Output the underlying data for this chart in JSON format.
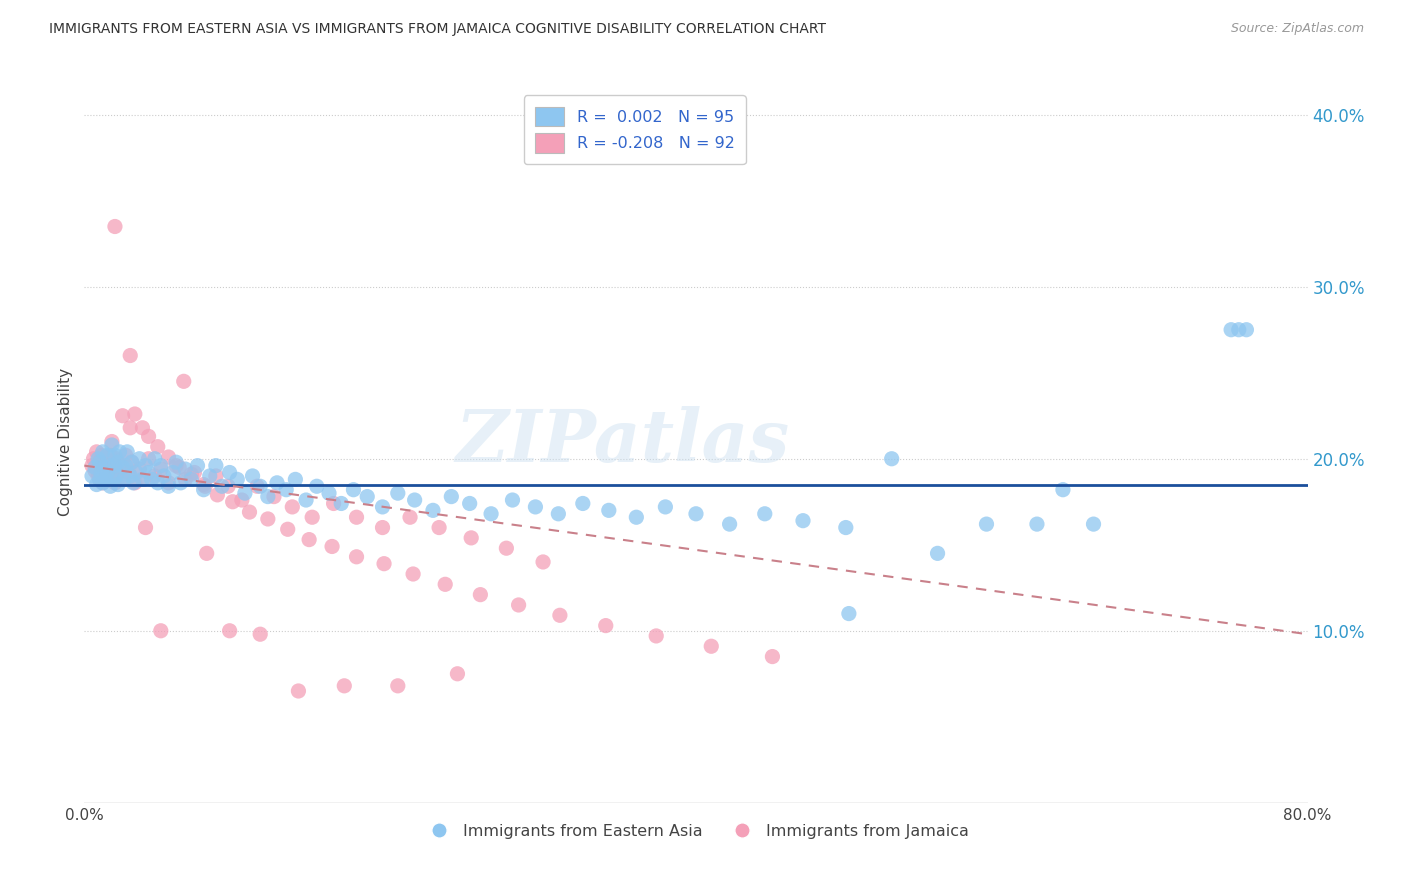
{
  "title": "IMMIGRANTS FROM EASTERN ASIA VS IMMIGRANTS FROM JAMAICA COGNITIVE DISABILITY CORRELATION CHART",
  "source": "Source: ZipAtlas.com",
  "ylabel": "Cognitive Disability",
  "xlim": [
    0.0,
    0.8
  ],
  "ylim": [
    0.0,
    0.42
  ],
  "yticks": [
    0.1,
    0.2,
    0.3,
    0.4
  ],
  "ytick_labels": [
    "10.0%",
    "20.0%",
    "30.0%",
    "40.0%"
  ],
  "color_blue": "#8EC6F0",
  "color_pink": "#F4A0B8",
  "trend_blue_color": "#1B4F9C",
  "trend_pink_color": "#C9808A",
  "watermark": "ZIPatlas",
  "blue_trend_y0": 0.185,
  "blue_trend_y1": 0.185,
  "pink_trend_y0": 0.196,
  "pink_trend_y1": 0.098,
  "blue_x": [
    0.005,
    0.007,
    0.008,
    0.009,
    0.01,
    0.01,
    0.011,
    0.012,
    0.012,
    0.013,
    0.014,
    0.015,
    0.015,
    0.016,
    0.017,
    0.018,
    0.019,
    0.02,
    0.02,
    0.021,
    0.022,
    0.022,
    0.023,
    0.025,
    0.026,
    0.027,
    0.028,
    0.03,
    0.031,
    0.032,
    0.034,
    0.036,
    0.038,
    0.04,
    0.042,
    0.044,
    0.046,
    0.048,
    0.05,
    0.052,
    0.055,
    0.058,
    0.06,
    0.063,
    0.066,
    0.07,
    0.074,
    0.078,
    0.082,
    0.086,
    0.09,
    0.095,
    0.1,
    0.105,
    0.11,
    0.115,
    0.12,
    0.126,
    0.132,
    0.138,
    0.145,
    0.152,
    0.16,
    0.168,
    0.176,
    0.185,
    0.195,
    0.205,
    0.216,
    0.228,
    0.24,
    0.252,
    0.266,
    0.28,
    0.295,
    0.31,
    0.326,
    0.343,
    0.361,
    0.38,
    0.4,
    0.422,
    0.445,
    0.47,
    0.498,
    0.5,
    0.528,
    0.558,
    0.59,
    0.623,
    0.64,
    0.66,
    0.75,
    0.755,
    0.76
  ],
  "blue_y": [
    0.19,
    0.195,
    0.185,
    0.2,
    0.188,
    0.198,
    0.192,
    0.186,
    0.204,
    0.195,
    0.188,
    0.202,
    0.192,
    0.196,
    0.184,
    0.208,
    0.188,
    0.196,
    0.202,
    0.19,
    0.198,
    0.185,
    0.204,
    0.195,
    0.188,
    0.196,
    0.204,
    0.19,
    0.198,
    0.186,
    0.192,
    0.2,
    0.188,
    0.196,
    0.192,
    0.188,
    0.2,
    0.186,
    0.196,
    0.19,
    0.184,
    0.192,
    0.198,
    0.186,
    0.194,
    0.188,
    0.196,
    0.182,
    0.19,
    0.196,
    0.184,
    0.192,
    0.188,
    0.18,
    0.19,
    0.184,
    0.178,
    0.186,
    0.182,
    0.188,
    0.176,
    0.184,
    0.18,
    0.174,
    0.182,
    0.178,
    0.172,
    0.18,
    0.176,
    0.17,
    0.178,
    0.174,
    0.168,
    0.176,
    0.172,
    0.168,
    0.174,
    0.17,
    0.166,
    0.172,
    0.168,
    0.162,
    0.168,
    0.164,
    0.16,
    0.11,
    0.2,
    0.145,
    0.162,
    0.162,
    0.182,
    0.162,
    0.275,
    0.275,
    0.275
  ],
  "pink_x": [
    0.005,
    0.006,
    0.007,
    0.008,
    0.009,
    0.01,
    0.01,
    0.011,
    0.012,
    0.012,
    0.013,
    0.014,
    0.015,
    0.016,
    0.017,
    0.018,
    0.019,
    0.02,
    0.021,
    0.022,
    0.023,
    0.025,
    0.027,
    0.029,
    0.031,
    0.033,
    0.036,
    0.039,
    0.042,
    0.046,
    0.05,
    0.055,
    0.06,
    0.066,
    0.072,
    0.079,
    0.086,
    0.094,
    0.103,
    0.113,
    0.124,
    0.136,
    0.149,
    0.163,
    0.178,
    0.195,
    0.213,
    0.232,
    0.253,
    0.276,
    0.3,
    0.018,
    0.025,
    0.03,
    0.033,
    0.038,
    0.042,
    0.048,
    0.055,
    0.062,
    0.07,
    0.078,
    0.087,
    0.097,
    0.108,
    0.12,
    0.133,
    0.147,
    0.162,
    0.178,
    0.196,
    0.215,
    0.236,
    0.259,
    0.284,
    0.311,
    0.341,
    0.374,
    0.41,
    0.45,
    0.02,
    0.03,
    0.04,
    0.05,
    0.065,
    0.08,
    0.095,
    0.115,
    0.14,
    0.17,
    0.205,
    0.244
  ],
  "pink_y": [
    0.196,
    0.2,
    0.193,
    0.204,
    0.19,
    0.198,
    0.188,
    0.202,
    0.195,
    0.186,
    0.2,
    0.193,
    0.197,
    0.188,
    0.202,
    0.192,
    0.198,
    0.186,
    0.2,
    0.192,
    0.196,
    0.188,
    0.202,
    0.192,
    0.198,
    0.186,
    0.194,
    0.188,
    0.2,
    0.19,
    0.194,
    0.186,
    0.196,
    0.188,
    0.192,
    0.184,
    0.19,
    0.184,
    0.176,
    0.184,
    0.178,
    0.172,
    0.166,
    0.174,
    0.166,
    0.16,
    0.166,
    0.16,
    0.154,
    0.148,
    0.14,
    0.21,
    0.225,
    0.218,
    0.226,
    0.218,
    0.213,
    0.207,
    0.201,
    0.195,
    0.191,
    0.185,
    0.179,
    0.175,
    0.169,
    0.165,
    0.159,
    0.153,
    0.149,
    0.143,
    0.139,
    0.133,
    0.127,
    0.121,
    0.115,
    0.109,
    0.103,
    0.097,
    0.091,
    0.085,
    0.335,
    0.26,
    0.16,
    0.1,
    0.245,
    0.145,
    0.1,
    0.098,
    0.065,
    0.068,
    0.068,
    0.075
  ]
}
